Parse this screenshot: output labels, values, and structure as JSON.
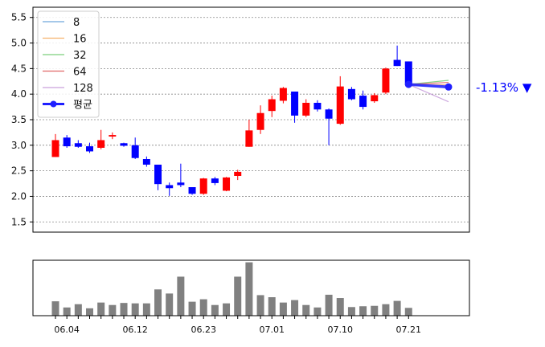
{
  "chart_data": {
    "type": "candlestick",
    "y_ticks": [
      "1.5",
      "2.0",
      "2.5",
      "3.0",
      "3.5",
      "4.0",
      "4.5",
      "5.0",
      "5.5"
    ],
    "ylim": [
      1.3,
      5.7
    ],
    "grid": true,
    "legend_position": "top-left",
    "candles": [
      {
        "o": 2.77,
        "c": 3.1,
        "h": 3.22,
        "l": 2.77
      },
      {
        "o": 3.15,
        "c": 2.98,
        "h": 3.2,
        "l": 2.95
      },
      {
        "o": 3.04,
        "c": 2.97,
        "h": 3.1,
        "l": 2.95
      },
      {
        "o": 2.98,
        "c": 2.88,
        "h": 3.05,
        "l": 2.85
      },
      {
        "o": 2.95,
        "c": 3.1,
        "h": 3.3,
        "l": 2.92
      },
      {
        "o": 3.17,
        "c": 3.2,
        "h": 3.25,
        "l": 3.12
      },
      {
        "o": 3.04,
        "c": 2.99,
        "h": 3.05,
        "l": 2.97
      },
      {
        "o": 3.0,
        "c": 2.75,
        "h": 3.15,
        "l": 2.73
      },
      {
        "o": 2.73,
        "c": 2.62,
        "h": 2.78,
        "l": 2.58
      },
      {
        "o": 2.62,
        "c": 2.24,
        "h": 2.62,
        "l": 2.12
      },
      {
        "o": 2.22,
        "c": 2.16,
        "h": 2.27,
        "l": 2.01
      },
      {
        "o": 2.27,
        "c": 2.22,
        "h": 2.64,
        "l": 2.18
      },
      {
        "o": 2.18,
        "c": 2.05,
        "h": 2.18,
        "l": 2.03
      },
      {
        "o": 2.05,
        "c": 2.35,
        "h": 2.36,
        "l": 2.03
      },
      {
        "o": 2.35,
        "c": 2.26,
        "h": 2.38,
        "l": 2.22
      },
      {
        "o": 2.11,
        "c": 2.37,
        "h": 2.38,
        "l": 2.1
      },
      {
        "o": 2.4,
        "c": 2.48,
        "h": 2.52,
        "l": 2.32
      },
      {
        "o": 2.97,
        "c": 3.29,
        "h": 3.5,
        "l": 2.97
      },
      {
        "o": 3.3,
        "c": 3.63,
        "h": 3.78,
        "l": 3.22
      },
      {
        "o": 3.67,
        "c": 3.9,
        "h": 3.97,
        "l": 3.55
      },
      {
        "o": 3.87,
        "c": 4.12,
        "h": 4.14,
        "l": 3.82
      },
      {
        "o": 4.05,
        "c": 3.58,
        "h": 4.05,
        "l": 3.44
      },
      {
        "o": 3.58,
        "c": 3.83,
        "h": 3.9,
        "l": 3.55
      },
      {
        "o": 3.83,
        "c": 3.7,
        "h": 3.88,
        "l": 3.66
      },
      {
        "o": 3.7,
        "c": 3.52,
        "h": 3.72,
        "l": 3.0
      },
      {
        "o": 3.42,
        "c": 4.15,
        "h": 4.35,
        "l": 3.4
      },
      {
        "o": 4.1,
        "c": 3.9,
        "h": 4.14,
        "l": 3.88
      },
      {
        "o": 3.97,
        "c": 3.75,
        "h": 4.07,
        "l": 3.7
      },
      {
        "o": 3.86,
        "c": 3.98,
        "h": 4.02,
        "l": 3.83
      },
      {
        "o": 4.03,
        "c": 4.5,
        "h": 4.52,
        "l": 4.0
      },
      {
        "o": 4.67,
        "c": 4.55,
        "h": 4.95,
        "l": 4.55
      },
      {
        "o": 4.64,
        "c": 4.18,
        "h": 4.64,
        "l": 4.16
      }
    ],
    "projection": {
      "legend": [
        "8",
        "16",
        "32",
        "64",
        "128",
        "평균"
      ],
      "colors": [
        "#6fa8dc",
        "#f6b26b",
        "#7ccf7c",
        "#e06666",
        "#c9a0dc",
        "#1f1fff"
      ],
      "start": 4.19,
      "end_values": [
        4.12,
        4.18,
        4.27,
        4.23,
        3.85,
        4.14
      ],
      "change_label": "-1.13% ▼"
    },
    "volume": [
      35,
      20,
      28,
      18,
      32,
      26,
      31,
      30,
      30,
      64,
      54,
      95,
      34,
      40,
      26,
      30,
      95,
      130,
      50,
      45,
      32,
      38,
      26,
      20,
      51,
      43,
      21,
      23,
      24,
      28,
      36,
      19
    ],
    "x_tick_labels": [
      {
        "i": 1,
        "label": "06.04"
      },
      {
        "i": 7,
        "label": "06.12"
      },
      {
        "i": 13,
        "label": "06.23"
      },
      {
        "i": 19,
        "label": "07.01"
      },
      {
        "i": 25,
        "label": "07.10"
      },
      {
        "i": 31,
        "label": "07.21"
      }
    ]
  }
}
